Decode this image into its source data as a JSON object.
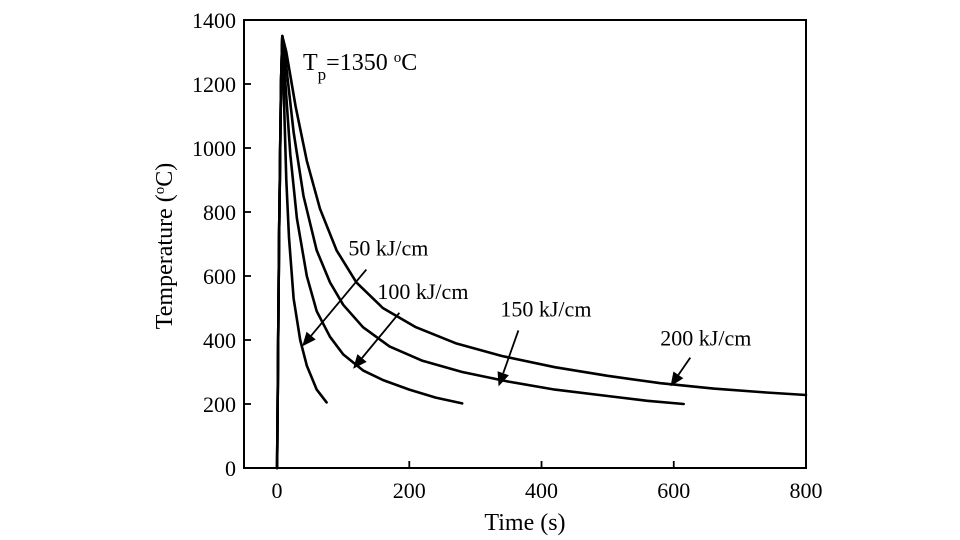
{
  "chart_data": {
    "type": "line",
    "title": "",
    "xlabel": "Time (s)",
    "ylabel_main": "Temperature (",
    "ylabel_sup": "o",
    "ylabel_tail": "C)",
    "xlim": [
      -50,
      800
    ],
    "ylim": [
      0,
      1400
    ],
    "xticks": [
      "0",
      "200",
      "400",
      "600",
      "800"
    ],
    "yticks": [
      "0",
      "200",
      "400",
      "600",
      "800",
      "1000",
      "1200",
      "1400"
    ],
    "grid": false,
    "annotation": {
      "prefix": "T",
      "sub": "p",
      "mid": "=1350 ",
      "sup": "o",
      "tail": "C"
    },
    "series": [
      {
        "name": "50 kJ/cm",
        "points": [
          [
            0,
            0
          ],
          [
            3,
            700
          ],
          [
            6,
            1200
          ],
          [
            8,
            1350
          ],
          [
            10,
            1180
          ],
          [
            14,
            900
          ],
          [
            18,
            720
          ],
          [
            25,
            530
          ],
          [
            35,
            400
          ],
          [
            45,
            320
          ],
          [
            60,
            245
          ],
          [
            75,
            205
          ]
        ],
        "arrow_from": [
          135,
          620
        ],
        "arrow_to": [
          38,
          380
        ]
      },
      {
        "name": "100 kJ/cm",
        "points": [
          [
            0,
            0
          ],
          [
            3,
            700
          ],
          [
            6,
            1200
          ],
          [
            8,
            1350
          ],
          [
            12,
            1220
          ],
          [
            20,
            980
          ],
          [
            30,
            780
          ],
          [
            45,
            600
          ],
          [
            60,
            490
          ],
          [
            80,
            410
          ],
          [
            100,
            355
          ],
          [
            130,
            305
          ],
          [
            160,
            275
          ],
          [
            200,
            245
          ],
          [
            240,
            220
          ],
          [
            280,
            202
          ]
        ],
        "arrow_from": [
          185,
          485
        ],
        "arrow_to": [
          115,
          310
        ]
      },
      {
        "name": "150 kJ/cm",
        "points": [
          [
            0,
            0
          ],
          [
            3,
            700
          ],
          [
            6,
            1200
          ],
          [
            8,
            1350
          ],
          [
            13,
            1270
          ],
          [
            25,
            1050
          ],
          [
            40,
            850
          ],
          [
            60,
            680
          ],
          [
            80,
            580
          ],
          [
            100,
            510
          ],
          [
            130,
            440
          ],
          [
            170,
            380
          ],
          [
            220,
            335
          ],
          [
            280,
            300
          ],
          [
            350,
            270
          ],
          [
            420,
            245
          ],
          [
            500,
            225
          ],
          [
            560,
            210
          ],
          [
            615,
            200
          ]
        ],
        "arrow_from": [
          365,
          430
        ],
        "arrow_to": [
          335,
          255
        ]
      },
      {
        "name": "200 kJ/cm",
        "points": [
          [
            0,
            0
          ],
          [
            3,
            700
          ],
          [
            6,
            1200
          ],
          [
            8,
            1350
          ],
          [
            14,
            1300
          ],
          [
            28,
            1130
          ],
          [
            45,
            960
          ],
          [
            65,
            810
          ],
          [
            90,
            680
          ],
          [
            120,
            580
          ],
          [
            160,
            500
          ],
          [
            210,
            440
          ],
          [
            270,
            390
          ],
          [
            340,
            350
          ],
          [
            420,
            315
          ],
          [
            500,
            288
          ],
          [
            580,
            265
          ],
          [
            660,
            248
          ],
          [
            740,
            236
          ],
          [
            800,
            228
          ]
        ],
        "arrow_from": [
          625,
          345
        ],
        "arrow_to": [
          595,
          255
        ]
      }
    ]
  }
}
